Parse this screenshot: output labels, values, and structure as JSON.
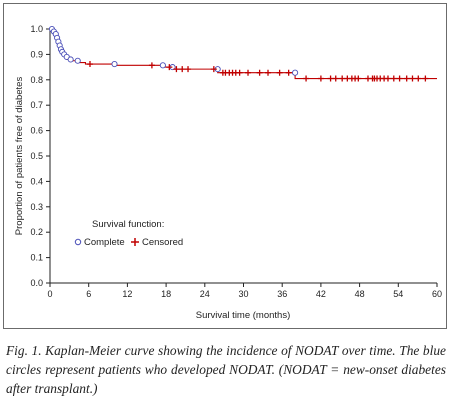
{
  "chart_data": {
    "type": "line",
    "title": "",
    "xlabel": "Survival time (months)",
    "ylabel": "Proportion of patients free of diabetes",
    "xlim": [
      0,
      60
    ],
    "ylim": [
      0.0,
      1.0
    ],
    "x_ticks": [
      "0",
      "6",
      "12",
      "18",
      "24",
      "30",
      "36",
      "42",
      "48",
      "54",
      "60"
    ],
    "y_ticks": [
      "0.0",
      "0.1",
      "0.2",
      "0.3",
      "0.4",
      "0.5",
      "0.6",
      "0.7",
      "0.8",
      "0.9",
      "1.0"
    ],
    "grid": false,
    "legend": {
      "title": "Survival function:",
      "placement": "bottom-left",
      "entries": [
        "Complete",
        "Censored"
      ]
    },
    "colors": {
      "curve": "#c00000",
      "complete": "#4a4fb8",
      "censored": "#c00000"
    },
    "series": [
      {
        "name": "Survival function",
        "x": [
          0,
          0.3,
          0.6,
          0.9,
          1.1,
          1.3,
          1.5,
          1.7,
          1.9,
          2.2,
          2.6,
          3.2,
          4.3,
          5.5,
          10,
          17.5,
          19,
          26,
          38,
          60
        ],
        "y": [
          1.0,
          0.99,
          0.98,
          0.965,
          0.95,
          0.935,
          0.92,
          0.91,
          0.9,
          0.89,
          0.88,
          0.875,
          0.868,
          0.862,
          0.857,
          0.85,
          0.842,
          0.828,
          0.805,
          0.805
        ]
      }
    ],
    "complete_events": {
      "x": [
        0.3,
        0.6,
        0.9,
        1.1,
        1.3,
        1.5,
        1.7,
        1.9,
        2.2,
        2.6,
        3.2,
        4.3,
        10,
        17.5,
        19,
        26,
        38
      ],
      "y": [
        1.0,
        0.99,
        0.98,
        0.965,
        0.95,
        0.935,
        0.92,
        0.91,
        0.9,
        0.89,
        0.88,
        0.875,
        0.862,
        0.857,
        0.85,
        0.842,
        0.828
      ]
    },
    "censored_events": {
      "x": [
        6.2,
        15.8,
        18.5,
        19.6,
        20.5,
        21.4,
        25.4,
        26.8,
        27.2,
        27.8,
        28.3,
        28.8,
        29.4,
        30.7,
        32.5,
        33.8,
        35.6,
        37,
        39.7,
        42,
        43.5,
        44.3,
        45.3,
        46.1,
        46.8,
        47.3,
        47.8,
        49.3,
        50,
        50.3,
        50.7,
        51.2,
        51.8,
        52.4,
        53.3,
        54.2,
        55.3,
        56.2,
        57.1,
        58.2
      ],
      "y": [
        0.862,
        0.857,
        0.85,
        0.842,
        0.842,
        0.842,
        0.842,
        0.828,
        0.828,
        0.828,
        0.828,
        0.828,
        0.828,
        0.828,
        0.828,
        0.828,
        0.828,
        0.828,
        0.805,
        0.805,
        0.805,
        0.805,
        0.805,
        0.805,
        0.805,
        0.805,
        0.805,
        0.805,
        0.805,
        0.805,
        0.805,
        0.805,
        0.805,
        0.805,
        0.805,
        0.805,
        0.805,
        0.805,
        0.805,
        0.805
      ]
    }
  },
  "caption": "Fig. 1. Kaplan-Meier curve showing the incidence of NODAT over time. The blue circles represent patients who developed NODAT. (NODAT = new-onset diabetes after transplant.)"
}
